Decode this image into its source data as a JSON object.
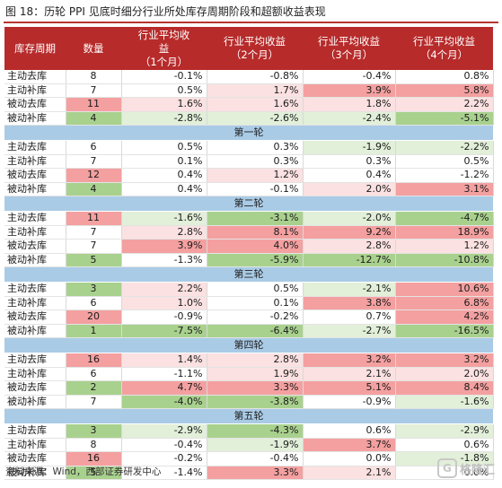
{
  "figure": {
    "title": "图 18：历轮 PPI 见底时细分行业所处库存周期阶段和超额收益表现",
    "source": "资料来源：Wind，西部证券研发中心",
    "watermark": "格隆汇"
  },
  "colors": {
    "header_bg": "#b72b2b",
    "section_bg": "#a9cbe6",
    "red_strong": "#f4a0a0",
    "red_light": "#fbe1e1",
    "green_strong": "#a9d18e",
    "green_light": "#e2efd9",
    "neutral": "#ffffff"
  },
  "table": {
    "headers": [
      "库存周期",
      "数量",
      "行业平均收\n益\n（1个月）",
      "行业平均收益\n（2个月）",
      "行业平均收益\n（3个月）",
      "行业平均收益\n（4个月）"
    ],
    "groups": [
      {
        "title": "",
        "rows": [
          {
            "phase": "主动去库",
            "count": "8",
            "m1": "-0.1%",
            "m2": "-0.8%",
            "m3": "-0.4%",
            "m4": "0.8%"
          },
          {
            "phase": "主动补库",
            "count": "7",
            "m1": "0.5%",
            "m2": "1.7%",
            "m3": "3.9%",
            "m4": "5.8%"
          },
          {
            "phase": "被动去库",
            "count": "11",
            "m1": "1.6%",
            "m2": "1.6%",
            "m3": "1.8%",
            "m4": "2.2%"
          },
          {
            "phase": "被动补库",
            "count": "4",
            "m1": "-2.8%",
            "m2": "-2.6%",
            "m3": "-2.4%",
            "m4": "-5.1%"
          }
        ]
      },
      {
        "title": "第一轮",
        "rows": [
          {
            "phase": "主动去库",
            "count": "6",
            "m1": "0.5%",
            "m2": "0.3%",
            "m3": "-1.9%",
            "m4": "-2.2%"
          },
          {
            "phase": "主动补库",
            "count": "7",
            "m1": "0.1%",
            "m2": "0.3%",
            "m3": "0.3%",
            "m4": "0.5%"
          },
          {
            "phase": "被动去库",
            "count": "12",
            "m1": "0.4%",
            "m2": "1.2%",
            "m3": "0.4%",
            "m4": "-1.2%"
          },
          {
            "phase": "被动补库",
            "count": "4",
            "m1": "0.4%",
            "m2": "-0.1%",
            "m3": "2.0%",
            "m4": "3.1%"
          }
        ]
      },
      {
        "title": "第二轮",
        "rows": [
          {
            "phase": "主动去库",
            "count": "11",
            "m1": "-1.6%",
            "m2": "-3.1%",
            "m3": "-2.0%",
            "m4": "-4.7%"
          },
          {
            "phase": "主动补库",
            "count": "7",
            "m1": "2.8%",
            "m2": "8.1%",
            "m3": "9.2%",
            "m4": "18.9%"
          },
          {
            "phase": "被动去库",
            "count": "7",
            "m1": "3.9%",
            "m2": "4.0%",
            "m3": "2.8%",
            "m4": "1.2%"
          },
          {
            "phase": "被动补库",
            "count": "5",
            "m1": "-1.3%",
            "m2": "-5.9%",
            "m3": "-12.7%",
            "m4": "-10.8%"
          }
        ]
      },
      {
        "title": "第三轮",
        "rows": [
          {
            "phase": "主动去库",
            "count": "3",
            "m1": "2.2%",
            "m2": "0.5%",
            "m3": "-2.1%",
            "m4": "10.6%"
          },
          {
            "phase": "主动补库",
            "count": "6",
            "m1": "1.0%",
            "m2": "0.1%",
            "m3": "3.8%",
            "m4": "6.8%"
          },
          {
            "phase": "被动去库",
            "count": "20",
            "m1": "-0.9%",
            "m2": "-0.2%",
            "m3": "0.7%",
            "m4": "4.2%"
          },
          {
            "phase": "被动补库",
            "count": "1",
            "m1": "-7.5%",
            "m2": "-6.4%",
            "m3": "-2.7%",
            "m4": "-16.5%"
          }
        ]
      },
      {
        "title": "第四轮",
        "rows": [
          {
            "phase": "主动去库",
            "count": "16",
            "m1": "1.4%",
            "m2": "2.8%",
            "m3": "3.2%",
            "m4": "3.2%"
          },
          {
            "phase": "主动补库",
            "count": "6",
            "m1": "-1.1%",
            "m2": "1.9%",
            "m3": "2.1%",
            "m4": "2.0%"
          },
          {
            "phase": "被动去库",
            "count": "2",
            "m1": "4.7%",
            "m2": "3.3%",
            "m3": "5.1%",
            "m4": "8.4%"
          },
          {
            "phase": "被动补库",
            "count": "7",
            "m1": "-4.0%",
            "m2": "-3.8%",
            "m3": "-0.9%",
            "m4": "-1.6%"
          }
        ]
      },
      {
        "title": "第五轮",
        "rows": [
          {
            "phase": "主动去库",
            "count": "3",
            "m1": "-2.9%",
            "m2": "-4.3%",
            "m3": "0.6%",
            "m4": "-2.9%"
          },
          {
            "phase": "主动补库",
            "count": "8",
            "m1": "-0.4%",
            "m2": "-1.9%",
            "m3": "3.7%",
            "m4": "0.6%"
          },
          {
            "phase": "被动去库",
            "count": "16",
            "m1": "-0.2%",
            "m2": "-0.4%",
            "m3": "0.0%",
            "m4": "-1.8%"
          },
          {
            "phase": "被动补库",
            "count": "5",
            "m1": "-1.4%",
            "m2": "3.3%",
            "m3": "2.1%",
            "m4": "0.0%"
          }
        ]
      }
    ]
  }
}
